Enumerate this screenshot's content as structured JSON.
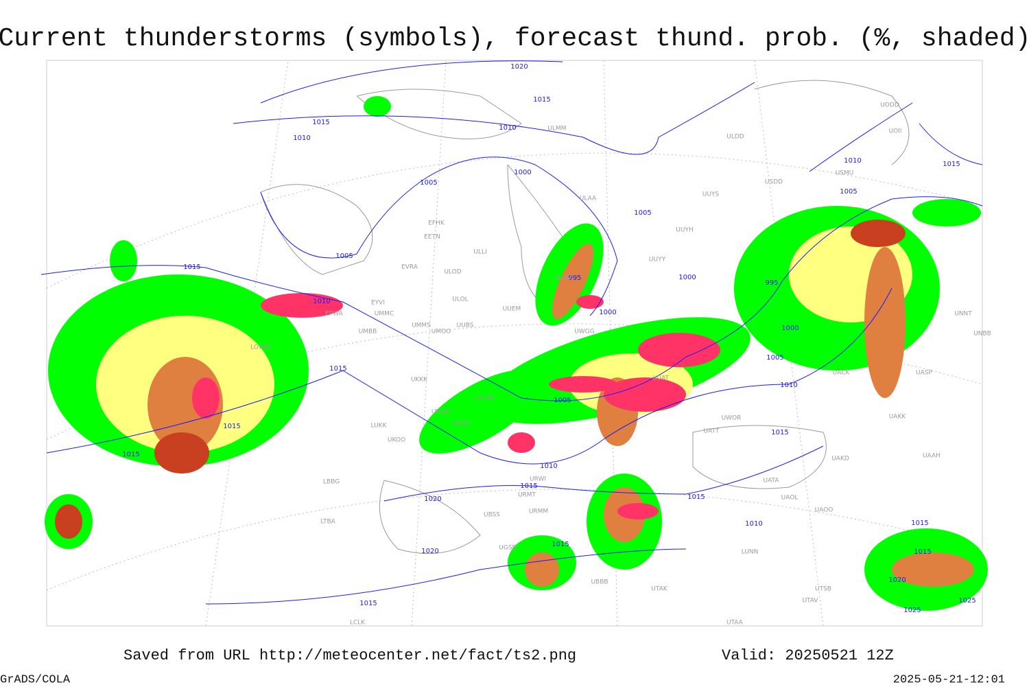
{
  "header": {
    "title": "Current thunderstorms (symbols), forecast thund. prob. (%, shaded)"
  },
  "isobars": [
    "1020",
    "1015",
    "1015",
    "1010",
    "1010",
    "1000",
    "1005",
    "1005",
    "1005",
    "1005",
    "1015",
    "1010",
    "1015",
    "995",
    "1000",
    "995",
    "1010",
    "1000",
    "1000",
    "1005",
    "1015",
    "1010",
    "1005",
    "1015",
    "1015",
    "1015",
    "1010",
    "1015",
    "1020",
    "1015",
    "1010",
    "1015",
    "1015",
    "1020",
    "1015",
    "1020",
    "1015",
    "1025",
    "1025"
  ],
  "stations": [
    "ULMM",
    "ULDD",
    "UODD",
    "UOII",
    "USMU",
    "USDD",
    "ULAA",
    "UUYS",
    "UUYH",
    "UUYY",
    "ULWW",
    "EFHK",
    "EETN",
    "ULLI",
    "EVRA",
    "ULOD",
    "ULOL",
    "EYVI",
    "UMMC",
    "UMMS",
    "UMOO",
    "UUBS",
    "UMBB",
    "UUEM",
    "UWGG",
    "EPWA",
    "LOWW",
    "UKKK",
    "UUOB",
    "UMGG",
    "UKDD",
    "LUKK",
    "UKOO",
    "UUAT",
    "UWOR",
    "UATT",
    "UAKD",
    "UATA",
    "UAOL",
    "UAOO",
    "URMT",
    "URMM",
    "UBSS",
    "UGSB",
    "UBBB",
    "UTAK",
    "UTSB",
    "UTAV",
    "UNNT",
    "UNBB",
    "UASP",
    "UAKK",
    "UAAH",
    "UACK",
    "URWI",
    "LBBG",
    "LTBA",
    "UTAA",
    "LCLK",
    "LUNN"
  ],
  "footer": {
    "saved": "Saved from URL http://meteocenter.net/fact/ts2.png",
    "valid": "Valid: 20250521 12Z",
    "software": "GrADS/COLA",
    "timestamp": "2025-05-21-12:01"
  }
}
